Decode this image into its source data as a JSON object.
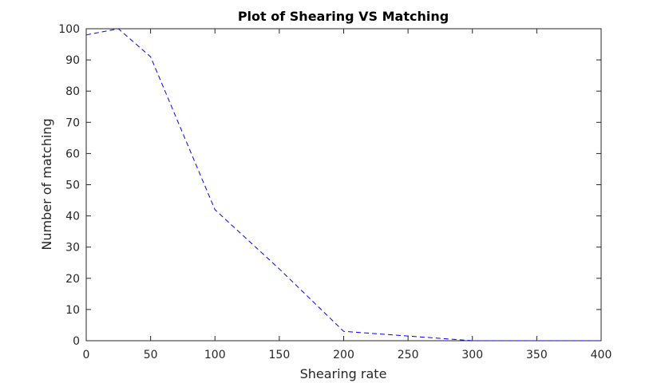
{
  "chart_data": {
    "type": "line",
    "title": "Plot of Shearing VS Matching",
    "xlabel": "Shearing rate",
    "ylabel": "Number of matching",
    "xlim": [
      0,
      400
    ],
    "ylim": [
      0,
      100
    ],
    "xticks": [
      0,
      50,
      100,
      150,
      200,
      250,
      300,
      350,
      400
    ],
    "yticks": [
      0,
      10,
      20,
      30,
      40,
      50,
      60,
      70,
      80,
      90,
      100
    ],
    "grid": false,
    "legend": "none",
    "series": [
      {
        "color": "#0000ff",
        "line_style": "dashed",
        "x": [
          0,
          25,
          50,
          100,
          150,
          200,
          250,
          300,
          350,
          400
        ],
        "y": [
          98,
          100,
          91,
          42,
          23,
          3,
          1.5,
          0,
          0,
          0
        ]
      }
    ]
  }
}
